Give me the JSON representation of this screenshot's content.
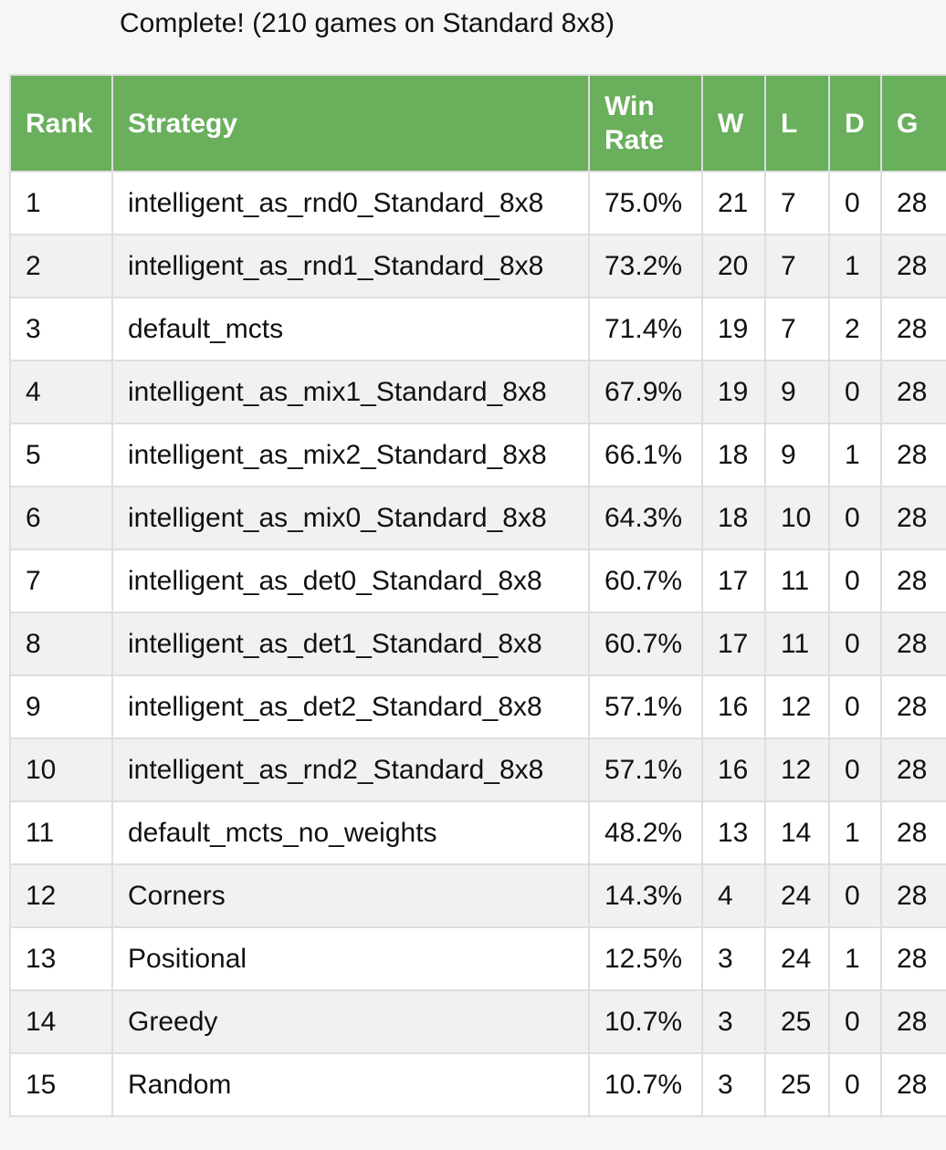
{
  "status_text": "Complete! (210 games on Standard 8x8)",
  "table": {
    "headers": {
      "rank": "Rank",
      "strategy": "Strategy",
      "win_rate_line1": "Win",
      "win_rate_line2": "Rate",
      "w": "W",
      "l": "L",
      "d": "D",
      "g": "G"
    },
    "rows": [
      {
        "rank": "1",
        "strategy": "intelligent_as_rnd0_Standard_8x8",
        "win_rate": "75.0%",
        "w": "21",
        "l": "7",
        "d": "0",
        "g": "28"
      },
      {
        "rank": "2",
        "strategy": "intelligent_as_rnd1_Standard_8x8",
        "win_rate": "73.2%",
        "w": "20",
        "l": "7",
        "d": "1",
        "g": "28"
      },
      {
        "rank": "3",
        "strategy": "default_mcts",
        "win_rate": "71.4%",
        "w": "19",
        "l": "7",
        "d": "2",
        "g": "28"
      },
      {
        "rank": "4",
        "strategy": "intelligent_as_mix1_Standard_8x8",
        "win_rate": "67.9%",
        "w": "19",
        "l": "9",
        "d": "0",
        "g": "28"
      },
      {
        "rank": "5",
        "strategy": "intelligent_as_mix2_Standard_8x8",
        "win_rate": "66.1%",
        "w": "18",
        "l": "9",
        "d": "1",
        "g": "28"
      },
      {
        "rank": "6",
        "strategy": "intelligent_as_mix0_Standard_8x8",
        "win_rate": "64.3%",
        "w": "18",
        "l": "10",
        "d": "0",
        "g": "28"
      },
      {
        "rank": "7",
        "strategy": "intelligent_as_det0_Standard_8x8",
        "win_rate": "60.7%",
        "w": "17",
        "l": "11",
        "d": "0",
        "g": "28"
      },
      {
        "rank": "8",
        "strategy": "intelligent_as_det1_Standard_8x8",
        "win_rate": "60.7%",
        "w": "17",
        "l": "11",
        "d": "0",
        "g": "28"
      },
      {
        "rank": "9",
        "strategy": "intelligent_as_det2_Standard_8x8",
        "win_rate": "57.1%",
        "w": "16",
        "l": "12",
        "d": "0",
        "g": "28"
      },
      {
        "rank": "10",
        "strategy": "intelligent_as_rnd2_Standard_8x8",
        "win_rate": "57.1%",
        "w": "16",
        "l": "12",
        "d": "0",
        "g": "28"
      },
      {
        "rank": "11",
        "strategy": "default_mcts_no_weights",
        "win_rate": "48.2%",
        "w": "13",
        "l": "14",
        "d": "1",
        "g": "28"
      },
      {
        "rank": "12",
        "strategy": "Corners",
        "win_rate": "14.3%",
        "w": "4",
        "l": "24",
        "d": "0",
        "g": "28"
      },
      {
        "rank": "13",
        "strategy": "Positional",
        "win_rate": "12.5%",
        "w": "3",
        "l": "24",
        "d": "1",
        "g": "28"
      },
      {
        "rank": "14",
        "strategy": "Greedy",
        "win_rate": "10.7%",
        "w": "3",
        "l": "25",
        "d": "0",
        "g": "28"
      },
      {
        "rank": "15",
        "strategy": "Random",
        "win_rate": "10.7%",
        "w": "3",
        "l": "25",
        "d": "0",
        "g": "28"
      }
    ]
  },
  "colors": {
    "header_bg": "#6aaf5c",
    "header_text": "#ffffff",
    "row_odd": "#ffffff",
    "row_even": "#f1f1f1",
    "border": "#dedede",
    "page_bg": "#f6f6f6"
  }
}
